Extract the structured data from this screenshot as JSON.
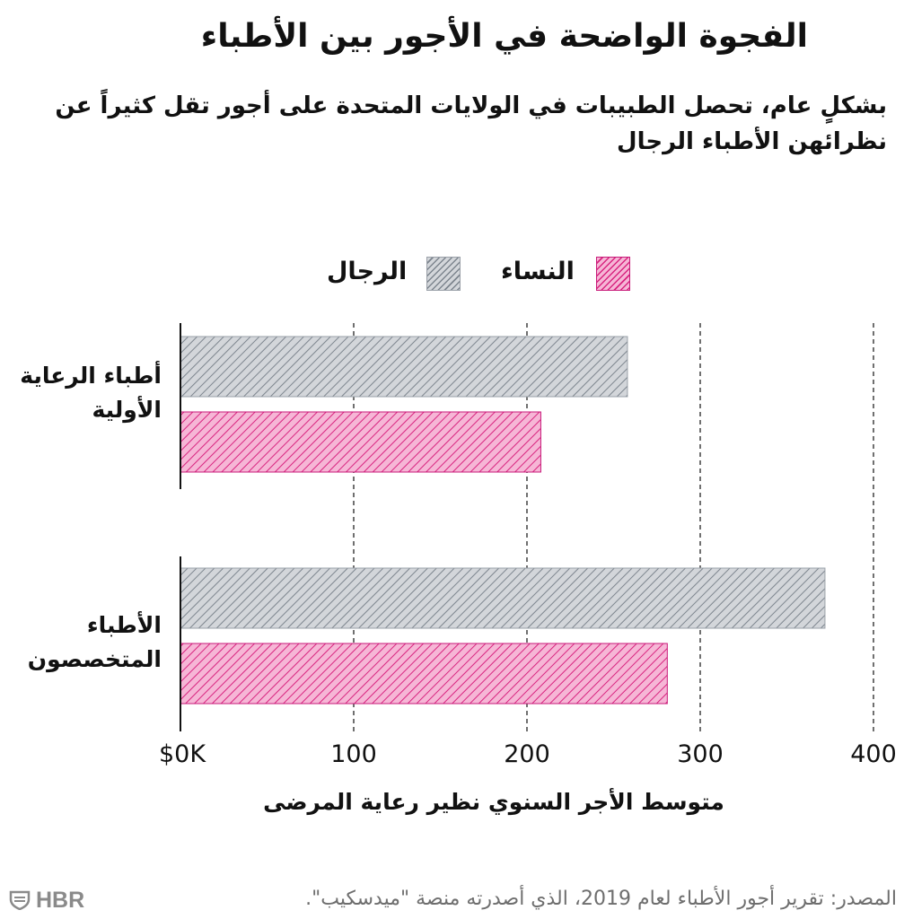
{
  "colors": {
    "women": "#d8247f",
    "women_light": "#f6b6d6",
    "men": "#7d858e",
    "men_light": "#d3d6da"
  },
  "chart_data": {
    "type": "bar",
    "orientation": "horizontal",
    "title": "الفجوة الواضحة في الأجور بين الأطباء",
    "subtitle": "بشكلٍ عام، تحصل الطبيبات في الولايات المتحدة على أجور تقل كثيراً عن نظرائهن الأطباء الرجال",
    "xlabel": "متوسط الأجر السنوي نظير رعاية المرضى",
    "categories": [
      "أطباء الرعاية الأولية",
      "الأطباء المتخصصون"
    ],
    "series": [
      {
        "name": "الرجال",
        "values": [
          258,
          372
        ]
      },
      {
        "name": "النساء",
        "values": [
          208,
          281
        ]
      }
    ],
    "xlim": [
      0,
      400
    ],
    "ticks": [
      {
        "value": 0,
        "label": "$0K"
      },
      {
        "value": 100,
        "label": "100"
      },
      {
        "value": 200,
        "label": "200"
      },
      {
        "value": 300,
        "label": "300"
      },
      {
        "value": 400,
        "label": "400"
      }
    ],
    "grid": true,
    "legend_position": "top-center"
  },
  "source": "المصدر: تقرير أجور الأطباء لعام 2019، الذي أصدرته منصة \"ميدسكيب\".",
  "logo_text": "HBR"
}
